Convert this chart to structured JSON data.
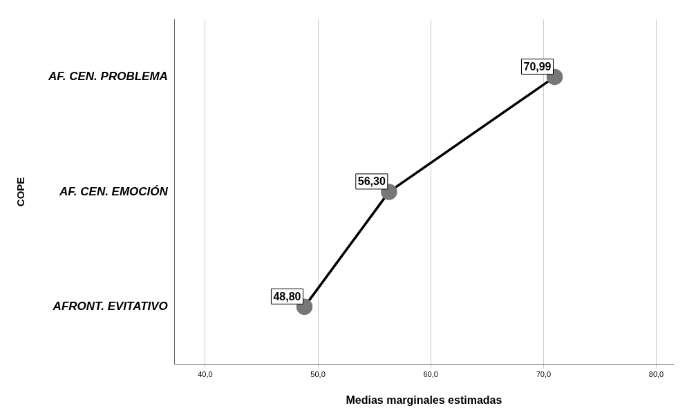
{
  "chart_data": {
    "type": "line",
    "orientation": "horizontal",
    "xlabel": "Medias marginales estimadas",
    "ylabel": "COPE",
    "categories": [
      "AF. CEN. PROBLEMA",
      "AF. CEN. EMOCIÓN",
      "AFRONT. EVITATIVO"
    ],
    "series": [
      {
        "color": "#000000",
        "values": [
          70.99,
          56.3,
          48.8
        ],
        "value_labels": [
          "70,99",
          "56,30",
          "48,80"
        ]
      }
    ],
    "xlim": [
      37.3,
      81.5
    ],
    "xticks": [
      {
        "value": 40,
        "label": "40,0"
      },
      {
        "value": 50,
        "label": "50,0"
      },
      {
        "value": 60,
        "label": "60,0"
      },
      {
        "value": 70,
        "label": "70,0"
      },
      {
        "value": 80,
        "label": "80,0"
      }
    ],
    "grid": "x",
    "marker": "circle",
    "line_style": "solid",
    "legend": false
  }
}
